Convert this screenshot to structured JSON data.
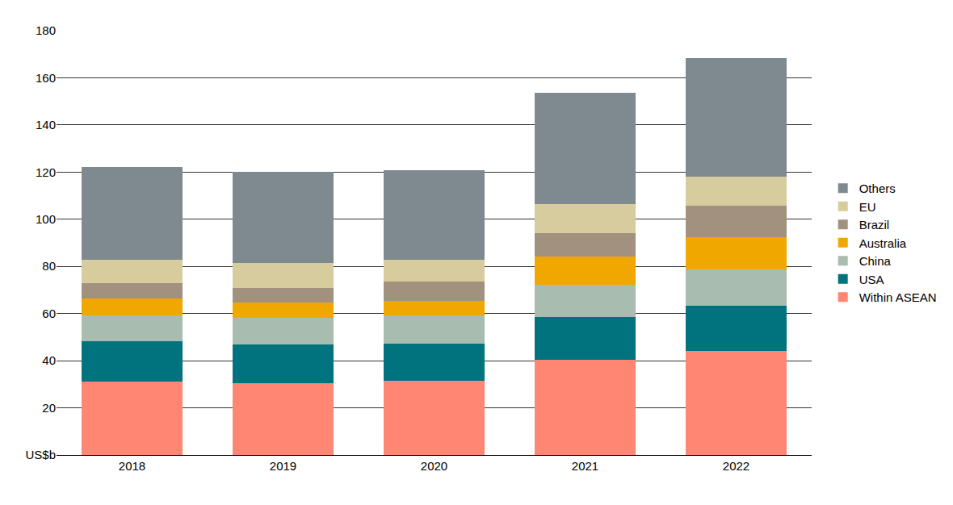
{
  "chart_data": {
    "type": "bar",
    "stacked": true,
    "categories": [
      "2018",
      "2019",
      "2020",
      "2021",
      "2022"
    ],
    "series": [
      {
        "name": "Within ASEAN",
        "color": "#ff8672",
        "values": [
          31.1,
          30.5,
          31.5,
          40.4,
          44.1
        ]
      },
      {
        "name": "USA",
        "color": "#00737f",
        "values": [
          17.2,
          16.4,
          15.7,
          18.1,
          19.2
        ]
      },
      {
        "name": "China",
        "color": "#a8bdb0",
        "values": [
          10.9,
          11.3,
          12.0,
          13.7,
          15.4
        ]
      },
      {
        "name": "Australia",
        "color": "#f0a800",
        "values": [
          7.2,
          6.5,
          6.2,
          12.0,
          13.7
        ]
      },
      {
        "name": "Brazil",
        "color": "#a39180",
        "values": [
          6.5,
          6.1,
          8.2,
          9.9,
          13.4
        ]
      },
      {
        "name": "EU",
        "color": "#d6cc9e",
        "values": [
          9.9,
          10.7,
          9.2,
          12.3,
          12.3
        ]
      },
      {
        "name": "Others",
        "color": "#7f8a90",
        "values": [
          39.4,
          38.6,
          38.0,
          47.3,
          50.3
        ]
      }
    ],
    "ylim": [
      0,
      180
    ],
    "yticks": [
      {
        "value": 0,
        "label": "US$b"
      },
      20,
      40,
      60,
      80,
      100,
      120,
      140,
      160,
      180
    ],
    "grid": true,
    "legend": "right"
  }
}
